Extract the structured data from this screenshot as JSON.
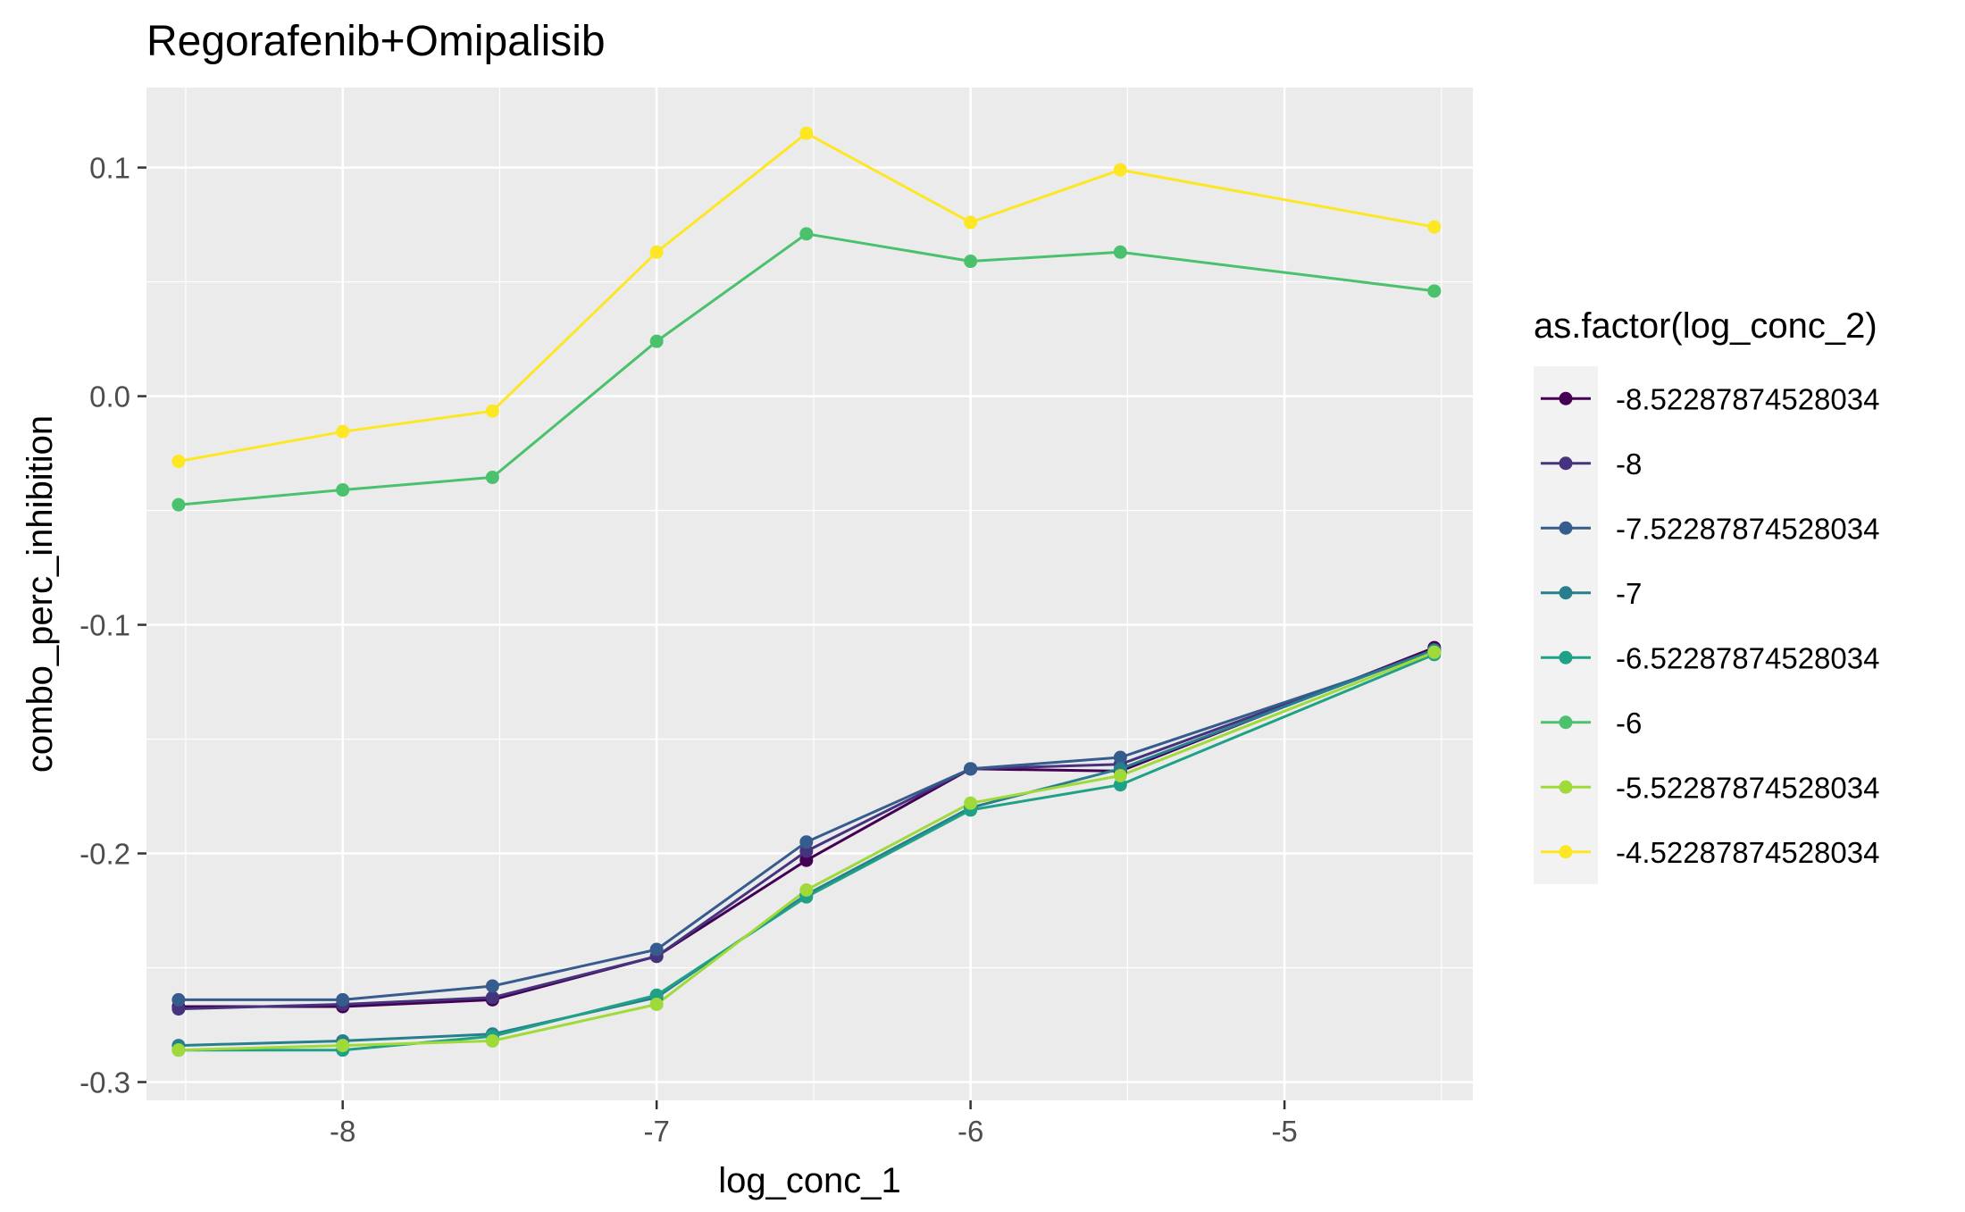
{
  "chart_data": {
    "type": "line",
    "title": "Regorafenib+Omipalisib",
    "xlabel": "log_conc_1",
    "ylabel": "combo_perc_inhibition",
    "legend_title": "as.factor(log_conc_2)",
    "legend_position": "right",
    "grid": true,
    "xlim": [
      -8.625,
      -4.4
    ],
    "ylim": [
      -0.308,
      0.135
    ],
    "x_ticks": [
      {
        "value": -8,
        "label": "-8"
      },
      {
        "value": -7,
        "label": "-7"
      },
      {
        "value": -6,
        "label": "-6"
      },
      {
        "value": -5,
        "label": "-5"
      }
    ],
    "y_ticks": [
      {
        "value": 0.1,
        "label": "0.1"
      },
      {
        "value": 0.0,
        "label": "0.0"
      },
      {
        "value": -0.1,
        "label": "-0.1"
      },
      {
        "value": -0.2,
        "label": "-0.2"
      },
      {
        "value": -0.3,
        "label": "-0.3"
      }
    ],
    "x": [
      -8.52287874528034,
      -8,
      -7.52287874528034,
      -7,
      -6.52287874528034,
      -6,
      -5.52287874528034,
      -4.52287874528034
    ],
    "series": [
      {
        "name": "-8.52287874528034",
        "color": "#440154",
        "values": [
          -0.267,
          -0.267,
          -0.264,
          -0.245,
          -0.203,
          -0.163,
          -0.164,
          -0.11
        ]
      },
      {
        "name": "-8",
        "color": "#46337E",
        "values": [
          -0.268,
          -0.266,
          -0.263,
          -0.245,
          -0.199,
          -0.163,
          -0.161,
          -0.111
        ]
      },
      {
        "name": "-7.52287874528034",
        "color": "#365C8D",
        "values": [
          -0.264,
          -0.264,
          -0.258,
          -0.242,
          -0.195,
          -0.163,
          -0.158,
          -0.112
        ]
      },
      {
        "name": "-7",
        "color": "#277F8E",
        "values": [
          -0.284,
          -0.282,
          -0.279,
          -0.263,
          -0.218,
          -0.18,
          -0.163,
          -0.111
        ]
      },
      {
        "name": "-6.52287874528034",
        "color": "#1FA187",
        "values": [
          -0.286,
          -0.286,
          -0.28,
          -0.262,
          -0.219,
          -0.181,
          -0.17,
          -0.113
        ]
      },
      {
        "name": "-6",
        "color": "#4AC16D",
        "values": [
          -0.0475,
          -0.041,
          -0.0355,
          0.024,
          0.071,
          0.059,
          0.063,
          0.046
        ]
      },
      {
        "name": "-5.52287874528034",
        "color": "#9FDA3A",
        "values": [
          -0.286,
          -0.284,
          -0.282,
          -0.266,
          -0.216,
          -0.178,
          -0.166,
          -0.112
        ]
      },
      {
        "name": "-4.52287874528034",
        "color": "#FDE725",
        "values": [
          -0.0285,
          -0.0155,
          -0.0065,
          0.063,
          0.115,
          0.076,
          0.099,
          0.074
        ]
      }
    ]
  }
}
